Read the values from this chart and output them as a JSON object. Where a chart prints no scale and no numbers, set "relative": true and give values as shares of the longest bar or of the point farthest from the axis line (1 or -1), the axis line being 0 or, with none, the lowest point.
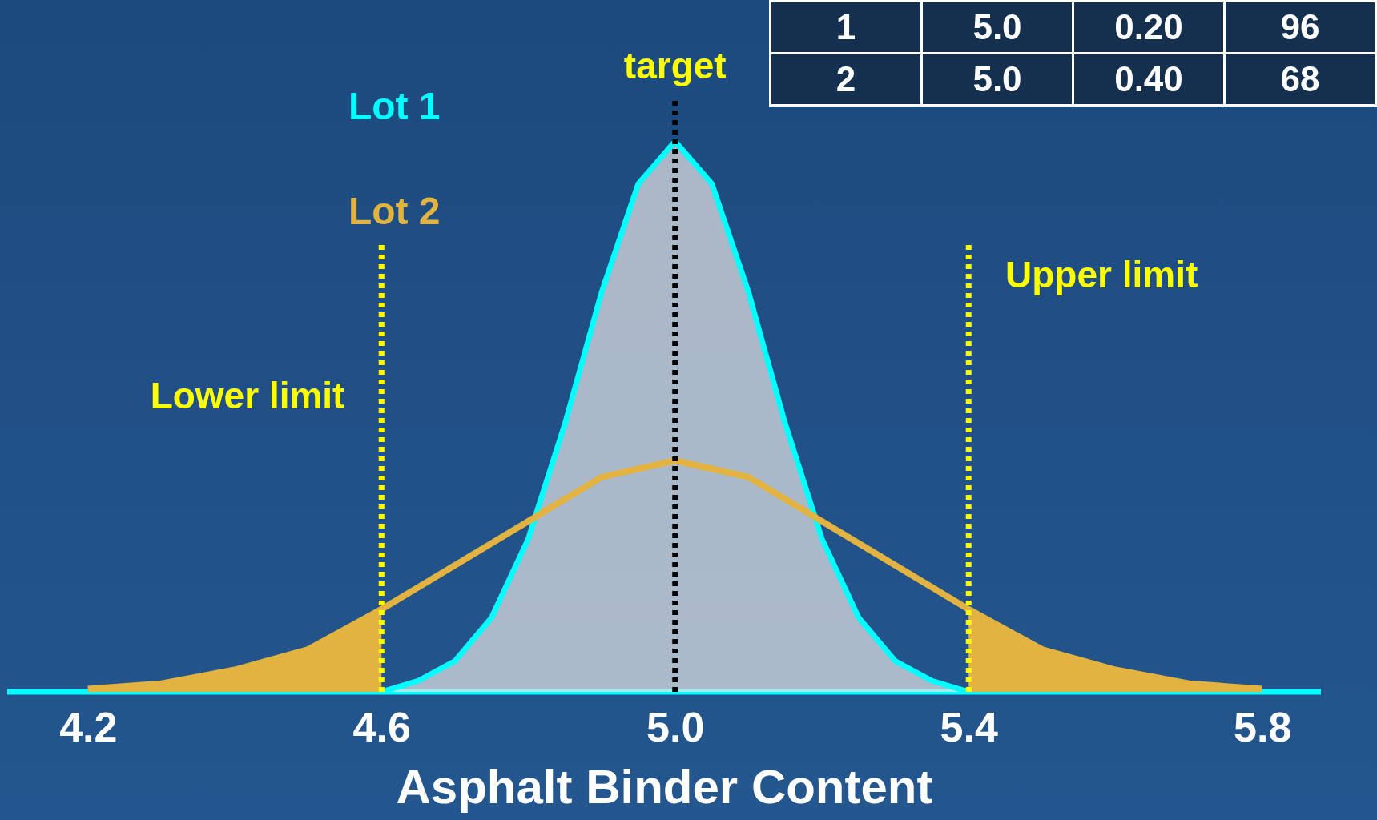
{
  "chart_data": {
    "type": "line",
    "relative": true,
    "xlabel": "Asphalt Binder Content",
    "xlim": [
      4.09,
      5.88
    ],
    "xticks": [
      {
        "value": 4.2,
        "label": "4.2"
      },
      {
        "value": 4.6,
        "label": "4.6"
      },
      {
        "value": 5.0,
        "label": "5.0"
      },
      {
        "value": 5.4,
        "label": "5.4"
      },
      {
        "value": 5.8,
        "label": "5.8"
      }
    ],
    "series": [
      {
        "name": "Lot 1",
        "type": "area",
        "color": "#00ffff",
        "x": [
          4.6,
          4.65,
          4.7,
          4.75,
          4.8,
          4.85,
          4.9,
          4.95,
          5.0,
          5.05,
          5.1,
          5.15,
          5.2,
          5.25,
          5.3,
          5.35,
          5.4
        ],
        "values": [
          0.0,
          0.02,
          0.056,
          0.135,
          0.278,
          0.487,
          0.726,
          0.923,
          1.0,
          0.923,
          0.726,
          0.487,
          0.278,
          0.135,
          0.056,
          0.02,
          0.0
        ]
      },
      {
        "type": "area",
        "color": "#e3b341",
        "x": [
          4.2,
          4.3,
          4.4,
          4.5,
          4.6
        ],
        "values": [
          0.005,
          0.015,
          0.04,
          0.077,
          0.15
        ]
      },
      {
        "type": "area",
        "color": "#e3b341",
        "x": [
          5.4,
          5.5,
          5.6,
          5.7,
          5.8
        ],
        "values": [
          0.15,
          0.077,
          0.04,
          0.015,
          0.005
        ]
      },
      {
        "name": "Lot 2",
        "color": "#e3b341",
        "x": [
          4.2,
          4.3,
          4.4,
          4.5,
          4.6,
          4.7,
          4.8,
          4.9,
          5.0,
          5.1,
          5.2,
          5.3,
          5.4,
          5.5,
          5.6,
          5.7,
          5.8
        ],
        "values": [
          0.005,
          0.015,
          0.04,
          0.077,
          0.15,
          0.23,
          0.31,
          0.39,
          0.42,
          0.39,
          0.31,
          0.23,
          0.15,
          0.077,
          0.04,
          0.015,
          0.005
        ]
      }
    ],
    "ref_lines": [
      {
        "axis": "x",
        "value": 5.0,
        "label": "target",
        "color": "#000000",
        "line_style": "dotted"
      },
      {
        "axis": "x",
        "value": 4.6,
        "label": "Lower limit",
        "color": "#ffff00",
        "line_style": "dotted"
      },
      {
        "axis": "x",
        "value": 5.4,
        "label": "Upper limit",
        "color": "#ffff00",
        "line_style": "dotted"
      }
    ],
    "annotations": [
      "1",
      "5.0",
      "0.20",
      "96",
      "2",
      "5.0",
      "0.40",
      "68"
    ]
  }
}
